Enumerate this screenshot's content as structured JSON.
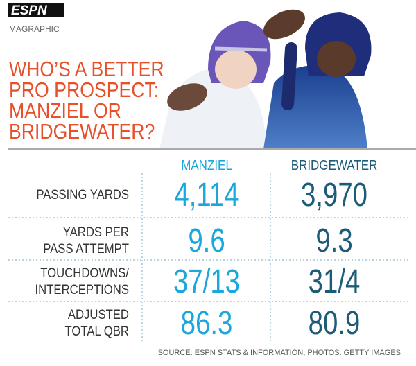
{
  "header": {
    "logo": "ESPN",
    "section": "MAGRAPHIC",
    "title": [
      "WHO’S A BETTER",
      "PRO PROSPECT:",
      "MANZIEL OR",
      "BRIDGEWATER?"
    ]
  },
  "table": {
    "columns": [
      "MANZIEL",
      "BRIDGEWATER"
    ],
    "rows": [
      {
        "label": [
          "PASSING YARDS"
        ],
        "values": [
          "4,114",
          "3,970"
        ]
      },
      {
        "label": [
          "YARDS PER",
          "PASS ATTEMPT"
        ],
        "values": [
          "9.6",
          "9.3"
        ]
      },
      {
        "label": [
          "TOUCHDOWNS/",
          "INTERCEPTIONS"
        ],
        "values": [
          "37/13",
          "31/4"
        ]
      },
      {
        "label": [
          "ADJUSTED",
          "TOTAL QBR"
        ],
        "values": [
          "86.3",
          "80.9"
        ]
      }
    ]
  },
  "footer": {
    "source": "SOURCE: ESPN STATS & INFORMATION; PHOTOS: GETTY IMAGES"
  }
}
